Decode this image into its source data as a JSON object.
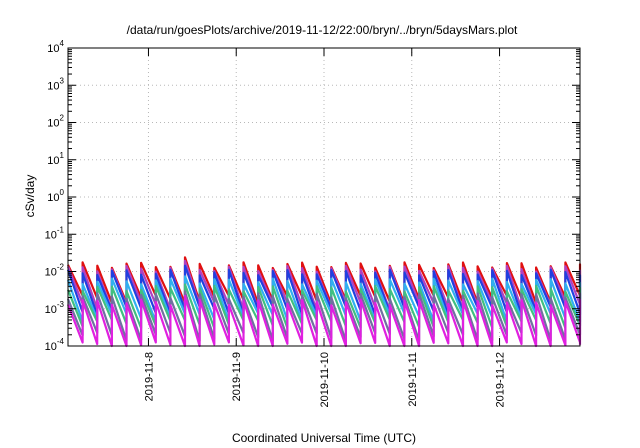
{
  "chart_data": {
    "type": "line",
    "title": "/data/run/goesPlots/archive/2019-11-12/22:00/bryn/../bryn/5daysMars.plot",
    "xlabel": "Coordinated Universal Time (UTC)",
    "ylabel": "cSv/day",
    "yscale": "log",
    "ylim": [
      0.0001,
      10000
    ],
    "xlim": [
      "2019-11-07 02:00",
      "2019-11-12 22:00"
    ],
    "x_ticks": [
      "2019-11-8",
      "2019-11-9",
      "2019-11-10",
      "2019-11-11",
      "2019-11-12"
    ],
    "y_ticks": [
      {
        "base": "10",
        "exp": "-4"
      },
      {
        "base": "10",
        "exp": "-3"
      },
      {
        "base": "10",
        "exp": "-2"
      },
      {
        "base": "10",
        "exp": "-1"
      },
      {
        "base": "10",
        "exp": "0"
      },
      {
        "base": "10",
        "exp": "1"
      },
      {
        "base": "10",
        "exp": "2"
      },
      {
        "base": "10",
        "exp": "3"
      },
      {
        "base": "10",
        "exp": "4"
      }
    ],
    "grid": true,
    "sawtooth_period_hours": 4,
    "series": [
      {
        "color": "#e01010",
        "peak": 0.015,
        "trough": 0.0018
      },
      {
        "color": "#b040c0",
        "peak": 0.012,
        "trough": 0.0012
      },
      {
        "color": "#2040e0",
        "peak": 0.0095,
        "trough": 0.0009
      },
      {
        "color": "#30b0f0",
        "peak": 0.0055,
        "trough": 0.0006
      },
      {
        "color": "#40c080",
        "peak": 0.0035,
        "trough": 0.0004
      },
      {
        "color": "#7070a0",
        "peak": 0.0022,
        "trough": 0.00018
      },
      {
        "color": "#e020e0",
        "peak": 0.0015,
        "trough": 0.0001
      }
    ]
  }
}
